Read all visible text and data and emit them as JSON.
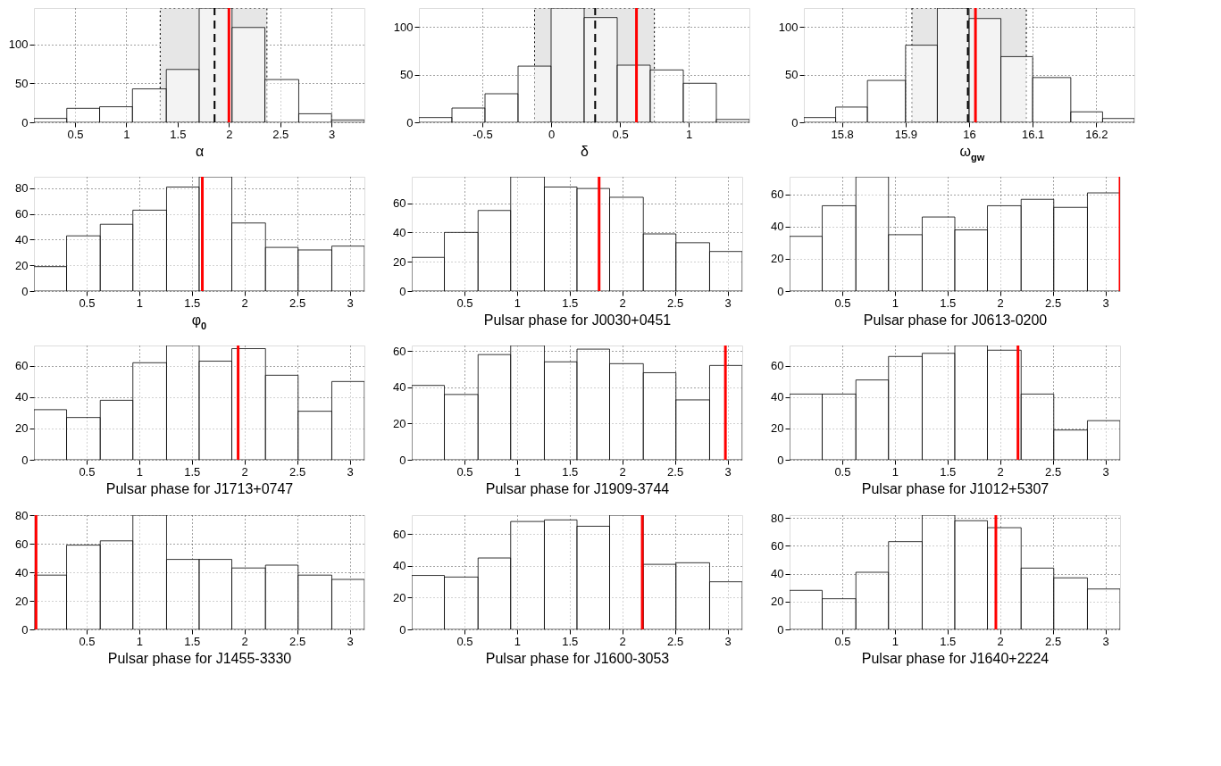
{
  "chart_data": [
    {
      "type": "histogram",
      "xlabel": "α",
      "color": "#ffffff",
      "grid": true,
      "bins": [
        0.1,
        0.42,
        0.74,
        1.06,
        1.39,
        1.71,
        2.03,
        2.35,
        2.68,
        3.0,
        3.32
      ],
      "values": [
        5,
        18,
        20,
        43,
        68,
        147,
        122,
        55,
        11,
        3
      ],
      "xlim": [
        0.1,
        3.32
      ],
      "xticks": [
        0.5,
        1,
        1.5,
        2,
        2.5,
        3
      ],
      "ylim": [
        0,
        147
      ],
      "yticks": [
        0,
        50,
        100
      ],
      "bands": [
        {
          "axis": "x",
          "from": 1.33,
          "to": 2.37,
          "color": "#e6e6e6"
        }
      ],
      "ref_lines": [
        {
          "axis": "x",
          "value": 1.86,
          "color": "#000000",
          "line_style": "dashed"
        },
        {
          "axis": "x",
          "value": 2.0,
          "color": "#ff0000",
          "line_style": "solid"
        }
      ]
    },
    {
      "type": "histogram",
      "xlabel": "δ",
      "color": "#ffffff",
      "grid": true,
      "bins": [
        -0.96,
        -0.72,
        -0.48,
        -0.24,
        0,
        0.24,
        0.48,
        0.72,
        0.96,
        1.2,
        1.44
      ],
      "values": [
        5,
        15,
        30,
        59,
        120,
        110,
        60,
        55,
        41,
        3
      ],
      "xlim": [
        -0.96,
        1.44
      ],
      "xticks": [
        -0.5,
        0,
        0.5,
        1
      ],
      "ylim": [
        0,
        120
      ],
      "yticks": [
        0,
        50,
        100
      ],
      "bands": [
        {
          "axis": "x",
          "from": -0.12,
          "to": 0.75,
          "color": "#e6e6e6"
        }
      ],
      "ref_lines": [
        {
          "axis": "x",
          "value": 0.32,
          "color": "#000000",
          "line_style": "dashed"
        },
        {
          "axis": "x",
          "value": 0.62,
          "color": "#ff0000",
          "line_style": "solid"
        }
      ]
    },
    {
      "type": "histogram",
      "xlabel": "ω$_{gw}$",
      "color": "#ffffff",
      "grid": true,
      "bins": [
        15.74,
        15.79,
        15.84,
        15.9,
        15.95,
        16.0,
        16.05,
        16.1,
        16.16,
        16.21,
        16.26
      ],
      "values": [
        5,
        16,
        44,
        81,
        120,
        109,
        69,
        47,
        11,
        4
      ],
      "xlim": [
        15.74,
        16.26
      ],
      "xticks": [
        15.8,
        15.9,
        16,
        16.1,
        16.2
      ],
      "ylim": [
        0,
        120
      ],
      "yticks": [
        0,
        50,
        100
      ],
      "bands": [
        {
          "axis": "x",
          "from": 15.91,
          "to": 16.09,
          "color": "#e6e6e6"
        }
      ],
      "ref_lines": [
        {
          "axis": "x",
          "value": 15.998,
          "color": "#000000",
          "line_style": "dashed"
        },
        {
          "axis": "x",
          "value": 16.01,
          "color": "#ff0000",
          "line_style": "solid"
        }
      ]
    },
    {
      "type": "histogram",
      "xlabel": "φ$_{0}$",
      "color": "#ffffff",
      "grid": true,
      "bins": [
        0,
        0.31,
        0.63,
        0.94,
        1.26,
        1.57,
        1.88,
        2.2,
        2.51,
        2.83,
        3.14
      ],
      "values": [
        19,
        43,
        52,
        63,
        81,
        89,
        53,
        34,
        32,
        35
      ],
      "xlim": [
        0,
        3.14
      ],
      "xticks": [
        0.5,
        1,
        1.5,
        2,
        2.5,
        3
      ],
      "ylim": [
        0,
        89
      ],
      "yticks": [
        0,
        20,
        40,
        60,
        80
      ],
      "ref_lines": [
        {
          "axis": "x",
          "value": 1.6,
          "color": "#ff0000",
          "line_style": "solid"
        }
      ]
    },
    {
      "type": "histogram",
      "xlabel": "Pulsar phase for J0030+0451",
      "color": "#ffffff",
      "grid": true,
      "bins": [
        0,
        0.31,
        0.63,
        0.94,
        1.26,
        1.57,
        1.88,
        2.2,
        2.51,
        2.83,
        3.14
      ],
      "values": [
        23,
        40,
        55,
        78,
        71,
        70,
        64,
        39,
        33,
        27
      ],
      "xlim": [
        0,
        3.14
      ],
      "xticks": [
        0.5,
        1,
        1.5,
        2,
        2.5,
        3
      ],
      "ylim": [
        0,
        78
      ],
      "yticks": [
        0,
        20,
        40,
        60
      ],
      "ref_lines": [
        {
          "axis": "x",
          "value": 1.78,
          "color": "#ff0000",
          "line_style": "solid"
        }
      ]
    },
    {
      "type": "histogram",
      "xlabel": "Pulsar phase for J0613-0200",
      "color": "#ffffff",
      "grid": true,
      "bins": [
        0,
        0.31,
        0.63,
        0.94,
        1.26,
        1.57,
        1.88,
        2.2,
        2.51,
        2.83,
        3.14
      ],
      "values": [
        34,
        53,
        71,
        35,
        46,
        38,
        53,
        57,
        52,
        61
      ],
      "xlim": [
        0,
        3.14
      ],
      "xticks": [
        0.5,
        1,
        1.5,
        2,
        2.5,
        3
      ],
      "ylim": [
        0,
        71
      ],
      "yticks": [
        0,
        20,
        40,
        60
      ],
      "ref_lines": [
        {
          "axis": "x",
          "value": 3.14,
          "color": "#ff0000",
          "line_style": "solid"
        }
      ]
    },
    {
      "type": "histogram",
      "xlabel": "Pulsar phase for J1713+0747",
      "color": "#ffffff",
      "grid": true,
      "bins": [
        0,
        0.31,
        0.63,
        0.94,
        1.26,
        1.57,
        1.88,
        2.2,
        2.51,
        2.83,
        3.14
      ],
      "values": [
        32,
        27,
        38,
        62,
        73,
        63,
        71,
        54,
        31,
        50
      ],
      "xlim": [
        0,
        3.14
      ],
      "xticks": [
        0.5,
        1,
        1.5,
        2,
        2.5,
        3
      ],
      "ylim": [
        0,
        73
      ],
      "yticks": [
        0,
        20,
        40,
        60
      ],
      "ref_lines": [
        {
          "axis": "x",
          "value": 1.94,
          "color": "#ff0000",
          "line_style": "solid"
        }
      ]
    },
    {
      "type": "histogram",
      "xlabel": "Pulsar phase for J1909-3744",
      "color": "#ffffff",
      "grid": true,
      "bins": [
        0,
        0.31,
        0.63,
        0.94,
        1.26,
        1.57,
        1.88,
        2.2,
        2.51,
        2.83,
        3.14
      ],
      "values": [
        41,
        36,
        58,
        63,
        54,
        61,
        53,
        48,
        33,
        52
      ],
      "xlim": [
        0,
        3.14
      ],
      "xticks": [
        0.5,
        1,
        1.5,
        2,
        2.5,
        3
      ],
      "ylim": [
        0,
        63
      ],
      "yticks": [
        0,
        20,
        40,
        60
      ],
      "ref_lines": [
        {
          "axis": "x",
          "value": 2.98,
          "color": "#ff0000",
          "line_style": "solid"
        }
      ]
    },
    {
      "type": "histogram",
      "xlabel": "Pulsar phase for J1012+5307",
      "color": "#ffffff",
      "grid": true,
      "bins": [
        0,
        0.31,
        0.63,
        0.94,
        1.26,
        1.57,
        1.88,
        2.2,
        2.51,
        2.83,
        3.14
      ],
      "values": [
        42,
        42,
        51,
        66,
        68,
        73,
        70,
        42,
        19,
        25
      ],
      "xlim": [
        0,
        3.14
      ],
      "xticks": [
        0.5,
        1,
        1.5,
        2,
        2.5,
        3
      ],
      "ylim": [
        0,
        73
      ],
      "yticks": [
        0,
        20,
        40,
        60
      ],
      "ref_lines": [
        {
          "axis": "x",
          "value": 2.17,
          "color": "#ff0000",
          "line_style": "solid"
        }
      ]
    },
    {
      "type": "histogram",
      "xlabel": "Pulsar phase for J1455-3330",
      "color": "#ffffff",
      "grid": true,
      "bins": [
        0,
        0.31,
        0.63,
        0.94,
        1.26,
        1.57,
        1.88,
        2.2,
        2.51,
        2.83,
        3.14
      ],
      "values": [
        38,
        59,
        62,
        80,
        49,
        49,
        43,
        45,
        38,
        35
      ],
      "xlim": [
        0,
        3.14
      ],
      "xticks": [
        0.5,
        1,
        1.5,
        2,
        2.5,
        3
      ],
      "ylim": [
        0,
        80
      ],
      "yticks": [
        0,
        20,
        40,
        60,
        80
      ],
      "ref_lines": [
        {
          "axis": "x",
          "value": 0.02,
          "color": "#ff0000",
          "line_style": "solid"
        }
      ]
    },
    {
      "type": "histogram",
      "xlabel": "Pulsar phase for J1600-3053",
      "color": "#ffffff",
      "grid": true,
      "bins": [
        0,
        0.31,
        0.63,
        0.94,
        1.26,
        1.57,
        1.88,
        2.2,
        2.51,
        2.83,
        3.14
      ],
      "values": [
        34,
        33,
        45,
        68,
        69,
        65,
        72,
        41,
        42,
        30
      ],
      "xlim": [
        0,
        3.14
      ],
      "xticks": [
        0.5,
        1,
        1.5,
        2,
        2.5,
        3
      ],
      "ylim": [
        0,
        72
      ],
      "yticks": [
        0,
        20,
        40,
        60
      ],
      "ref_lines": [
        {
          "axis": "x",
          "value": 2.19,
          "color": "#ff0000",
          "line_style": "solid"
        }
      ]
    },
    {
      "type": "histogram",
      "xlabel": "Pulsar phase for J1640+2224",
      "color": "#ffffff",
      "grid": true,
      "bins": [
        0,
        0.31,
        0.63,
        0.94,
        1.26,
        1.57,
        1.88,
        2.2,
        2.51,
        2.83,
        3.14
      ],
      "values": [
        28,
        22,
        41,
        63,
        82,
        78,
        73,
        44,
        37,
        29
      ],
      "xlim": [
        0,
        3.14
      ],
      "xticks": [
        0.5,
        1,
        1.5,
        2,
        2.5,
        3
      ],
      "ylim": [
        0,
        82
      ],
      "yticks": [
        0,
        20,
        40,
        60,
        80
      ],
      "ref_lines": [
        {
          "axis": "x",
          "value": 1.96,
          "color": "#ff0000",
          "line_style": "solid"
        }
      ]
    }
  ]
}
